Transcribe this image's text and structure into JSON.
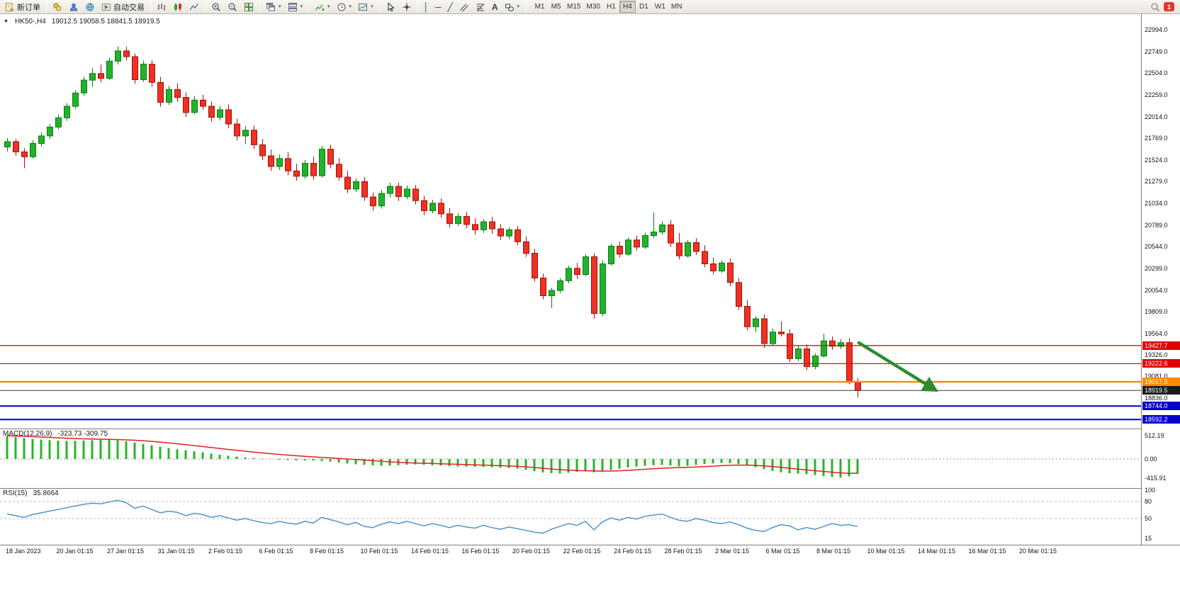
{
  "toolbar": {
    "new_order_label": "新订单",
    "auto_trading_label": "自动交易",
    "text_tool_label": "A",
    "timeframes": [
      "M1",
      "M5",
      "M15",
      "M30",
      "H1",
      "H4",
      "D1",
      "W1",
      "MN"
    ],
    "active_timeframe": "H4",
    "notification_badge": "1"
  },
  "icons": {
    "marker": "▼",
    "chevron_down": "▾",
    "vline_tool": "│",
    "hline_tool": "─",
    "trendline_tool": "╱"
  },
  "chart": {
    "symbol_period": "HK50-,H4",
    "ohlc_text": "19012.5 19058.5 18841.5 18919.5",
    "y_axis": [
      "22994.0",
      "22749.0",
      "22504.0",
      "22259.0",
      "22014.0",
      "21769.0",
      "21524.0",
      "21279.0",
      "21034.0",
      "20789.0",
      "20544.0",
      "20299.0",
      "20054.0",
      "19809.0",
      "19564.0",
      "19326.0",
      "19081.0",
      "18836.0"
    ],
    "x_axis": [
      "18 Jan 2023",
      "20 Jan 01:15",
      "27 Jan 01:15",
      "31 Jan 01:15",
      "2 Feb 01:15",
      "6 Feb 01:15",
      "8 Feb 01:15",
      "10 Feb 01:15",
      "14 Feb 01:15",
      "16 Feb 01:15",
      "20 Feb 01:15",
      "22 Feb 01:15",
      "24 Feb 01:15",
      "28 Feb 01:15",
      "2 Mar 01:15",
      "6 Mar 01:15",
      "8 Mar 01:15",
      "10 Mar 01:15",
      "14 Mar 01:15",
      "16 Mar 01:15",
      "20 Mar 01:15"
    ]
  },
  "panels": {
    "macd": {
      "title": "MACD(12,26,9)",
      "values_text": "-323.73 -309.75"
    },
    "rsi": {
      "title": "RSI(15)",
      "value_text": "35.8664"
    }
  },
  "annotation": {
    "type": "arrow",
    "direction": "down-right",
    "color": "#2e8b2e"
  },
  "chart_data": {
    "type": "candlestick",
    "symbol": "HK50-",
    "timeframe": "H4",
    "current": {
      "open": 19012.5,
      "high": 19058.5,
      "low": 18841.5,
      "close": 18919.5
    },
    "up_color": "#21b32b",
    "up_edge": "#0c7a12",
    "down_color": "#ef3124",
    "down_edge": "#a01208",
    "ylim": [
      18490,
      23170
    ],
    "candles": [
      [
        21670,
        21770,
        21620,
        21730
      ],
      [
        21730,
        21760,
        21570,
        21615
      ],
      [
        21615,
        21655,
        21430,
        21560
      ],
      [
        21560,
        21745,
        21540,
        21710
      ],
      [
        21710,
        21835,
        21675,
        21795
      ],
      [
        21795,
        21930,
        21760,
        21895
      ],
      [
        21895,
        22035,
        21870,
        22000
      ],
      [
        22000,
        22165,
        21965,
        22130
      ],
      [
        22130,
        22310,
        22100,
        22280
      ],
      [
        22280,
        22465,
        22250,
        22425
      ],
      [
        22425,
        22560,
        22350,
        22500
      ],
      [
        22500,
        22600,
        22400,
        22445
      ],
      [
        22445,
        22680,
        22425,
        22640
      ],
      [
        22640,
        22807,
        22600,
        22755
      ],
      [
        22755,
        22800,
        22645,
        22690
      ],
      [
        22690,
        22725,
        22385,
        22430
      ],
      [
        22430,
        22645,
        22405,
        22605
      ],
      [
        22605,
        22650,
        22350,
        22400
      ],
      [
        22400,
        22460,
        22125,
        22175
      ],
      [
        22175,
        22360,
        22145,
        22320
      ],
      [
        22320,
        22390,
        22180,
        22230
      ],
      [
        22230,
        22285,
        22010,
        22060
      ],
      [
        22060,
        22245,
        22040,
        22200
      ],
      [
        22200,
        22260,
        22090,
        22130
      ],
      [
        22130,
        22185,
        21955,
        22005
      ],
      [
        22005,
        22135,
        21970,
        22090
      ],
      [
        22090,
        22150,
        21880,
        21930
      ],
      [
        21930,
        21990,
        21745,
        21795
      ],
      [
        21795,
        21905,
        21700,
        21860
      ],
      [
        21860,
        21910,
        21645,
        21695
      ],
      [
        21695,
        21760,
        21520,
        21570
      ],
      [
        21570,
        21640,
        21400,
        21450
      ],
      [
        21450,
        21585,
        21410,
        21540
      ],
      [
        21540,
        21610,
        21350,
        21400
      ],
      [
        21400,
        21480,
        21290,
        21340
      ],
      [
        21340,
        21525,
        21310,
        21485
      ],
      [
        21485,
        21560,
        21300,
        21345
      ],
      [
        21345,
        21685,
        21325,
        21645
      ],
      [
        21645,
        21695,
        21430,
        21475
      ],
      [
        21475,
        21545,
        21290,
        21330
      ],
      [
        21330,
        21400,
        21150,
        21195
      ],
      [
        21195,
        21315,
        21160,
        21280
      ],
      [
        21280,
        21330,
        21060,
        21105
      ],
      [
        21105,
        21155,
        20950,
        21005
      ],
      [
        21005,
        21185,
        20975,
        21145
      ],
      [
        21145,
        21265,
        21100,
        21225
      ],
      [
        21225,
        21270,
        21060,
        21110
      ],
      [
        21110,
        21235,
        21080,
        21195
      ],
      [
        21195,
        21240,
        21020,
        21065
      ],
      [
        21065,
        21120,
        20900,
        20950
      ],
      [
        20950,
        21075,
        20920,
        21035
      ],
      [
        21035,
        21090,
        20870,
        20915
      ],
      [
        20915,
        20980,
        20760,
        20805
      ],
      [
        20805,
        20925,
        20775,
        20885
      ],
      [
        20885,
        20940,
        20750,
        20795
      ],
      [
        20795,
        20865,
        20680,
        20735
      ],
      [
        20735,
        20855,
        20700,
        20825
      ],
      [
        20825,
        20880,
        20690,
        20745
      ],
      [
        20745,
        20800,
        20620,
        20665
      ],
      [
        20665,
        20765,
        20630,
        20735
      ],
      [
        20735,
        20780,
        20560,
        20600
      ],
      [
        20600,
        20660,
        20430,
        20470
      ],
      [
        20470,
        20520,
        20150,
        20190
      ],
      [
        20190,
        20240,
        19950,
        19990
      ],
      [
        19990,
        20080,
        19850,
        20050
      ],
      [
        20050,
        20190,
        20020,
        20160
      ],
      [
        20160,
        20330,
        20130,
        20300
      ],
      [
        20300,
        20360,
        20180,
        20230
      ],
      [
        20230,
        20460,
        20210,
        20430
      ],
      [
        20430,
        20470,
        19730,
        19790
      ],
      [
        19790,
        20390,
        19760,
        20350
      ],
      [
        20350,
        20580,
        20330,
        20550
      ],
      [
        20550,
        20600,
        20420,
        20460
      ],
      [
        20460,
        20650,
        20440,
        20620
      ],
      [
        20620,
        20670,
        20500,
        20540
      ],
      [
        20540,
        20700,
        20520,
        20670
      ],
      [
        20670,
        20930,
        20640,
        20710
      ],
      [
        20710,
        20830,
        20680,
        20790
      ],
      [
        20790,
        20845,
        20540,
        20585
      ],
      [
        20585,
        20700,
        20400,
        20440
      ],
      [
        20440,
        20620,
        20420,
        20590
      ],
      [
        20590,
        20640,
        20450,
        20490
      ],
      [
        20490,
        20560,
        20310,
        20350
      ],
      [
        20350,
        20420,
        20230,
        20270
      ],
      [
        20270,
        20390,
        20250,
        20360
      ],
      [
        20360,
        20410,
        20100,
        20140
      ],
      [
        20140,
        20190,
        19830,
        19870
      ],
      [
        19870,
        19940,
        19600,
        19640
      ],
      [
        19640,
        19760,
        19580,
        19730
      ],
      [
        19730,
        19780,
        19400,
        19450
      ],
      [
        19450,
        19620,
        19420,
        19580
      ],
      [
        19580,
        19700,
        19530,
        19560
      ],
      [
        19560,
        19610,
        19240,
        19280
      ],
      [
        19280,
        19420,
        19250,
        19390
      ],
      [
        19390,
        19440,
        19150,
        19190
      ],
      [
        19190,
        19340,
        19160,
        19310
      ],
      [
        19310,
        19560,
        19290,
        19480
      ],
      [
        19480,
        19530,
        19380,
        19420
      ],
      [
        19420,
        19500,
        19390,
        19460
      ],
      [
        19460,
        19510,
        18990,
        19012.5
      ],
      [
        19012.5,
        19058.5,
        18841.5,
        18919.5
      ]
    ],
    "horizontal_lines": [
      {
        "value": 19427.7,
        "text": "19427.7",
        "line_color": "#dd1111",
        "line_width": 1.3,
        "badge_bg": "#e00000"
      },
      {
        "value": 19222.6,
        "text": "19222.6",
        "line_color": "#dd1111",
        "line_width": 1.3,
        "badge_bg": "#e00000"
      },
      {
        "value": 19017.5,
        "text": "19017.5",
        "line_color": "#ff8a00",
        "line_width": 2.4,
        "badge_bg": "#ff8a00"
      },
      {
        "value": 18919.5,
        "text": "18919.5",
        "line_color": "#3a3a3a",
        "line_width": 1,
        "badge_bg": "#1a1a1a"
      },
      {
        "value": 18744.0,
        "text": "18744.0",
        "line_color": "#0000cc",
        "line_width": 2,
        "badge_bg": "#0000cc"
      },
      {
        "value": 18592.2,
        "text": "18592.2",
        "line_color": "#0000cc",
        "line_width": 2,
        "badge_bg": "#0000cc"
      }
    ],
    "macd": {
      "params": "12,26,9",
      "histogram_color": "#27b52a",
      "signal_color": "#e02020",
      "scale_labels": [
        "512.19",
        "0.00",
        "-415.91"
      ],
      "scale_values": [
        512.19,
        0,
        -415.91
      ],
      "histogram": [
        500,
        482,
        460,
        440,
        425,
        412,
        402,
        395,
        398,
        405,
        412,
        418,
        420,
        408,
        388,
        360,
        330,
        300,
        270,
        240,
        212,
        190,
        170,
        148,
        120,
        95,
        72,
        52,
        35,
        20,
        8,
        -5,
        -15,
        -22,
        -28,
        -32,
        -36,
        -44,
        -58,
        -78,
        -98,
        -114,
        -128,
        -142,
        -150,
        -146,
        -136,
        -126,
        -120,
        -126,
        -136,
        -146,
        -156,
        -162,
        -166,
        -170,
        -175,
        -180,
        -186,
        -196,
        -212,
        -238,
        -268,
        -298,
        -312,
        -316,
        -300,
        -280,
        -262,
        -292,
        -272,
        -242,
        -212,
        -186,
        -166,
        -150,
        -136,
        -130,
        -142,
        -160,
        -150,
        -130,
        -110,
        -96,
        -86,
        -92,
        -112,
        -142,
        -182,
        -222,
        -262,
        -292,
        -312,
        -322,
        -332,
        -352,
        -372,
        -392,
        -404,
        -382,
        -323.73
      ],
      "signal": [
        510,
        504,
        497,
        489,
        481,
        472,
        463,
        455,
        448,
        442,
        437,
        433,
        429,
        425,
        419,
        411,
        400,
        386,
        370,
        352,
        333,
        313,
        293,
        273,
        252,
        231,
        210,
        190,
        171,
        152,
        134,
        117,
        101,
        86,
        72,
        59,
        47,
        36,
        25,
        13,
        1,
        -11,
        -24,
        -37,
        -50,
        -62,
        -72,
        -81,
        -88,
        -93,
        -98,
        -104,
        -110,
        -116,
        -122,
        -128,
        -134,
        -140,
        -146,
        -153,
        -161,
        -172,
        -186,
        -202,
        -218,
        -233,
        -245,
        -253,
        -257,
        -262,
        -265,
        -263,
        -257,
        -248,
        -237,
        -225,
        -213,
        -202,
        -193,
        -187,
        -182,
        -175,
        -166,
        -156,
        -146,
        -138,
        -133,
        -133,
        -139,
        -150,
        -165,
        -183,
        -202,
        -220,
        -238,
        -255,
        -272,
        -289,
        -304,
        -315,
        -309.75
      ]
    },
    "rsi": {
      "period": 15,
      "color": "#4f94cd",
      "level_labels": [
        "100",
        "80",
        "50",
        "15"
      ],
      "level_values": [
        100,
        80,
        50,
        15
      ],
      "dashed_levels": [
        80,
        50
      ],
      "values": [
        58,
        55,
        52,
        57,
        60,
        63,
        66,
        69,
        72,
        75,
        77,
        76,
        79,
        82,
        78,
        68,
        72,
        66,
        60,
        63,
        61,
        55,
        59,
        57,
        52,
        55,
        51,
        47,
        50,
        46,
        43,
        41,
        45,
        42,
        40,
        45,
        42,
        52,
        48,
        44,
        39,
        43,
        36,
        34,
        40,
        44,
        41,
        45,
        41,
        37,
        41,
        38,
        34,
        38,
        35,
        33,
        38,
        34,
        31,
        35,
        32,
        29,
        26,
        24,
        31,
        36,
        41,
        38,
        45,
        30,
        44,
        51,
        47,
        52,
        49,
        54,
        56,
        58,
        52,
        47,
        45,
        50,
        47,
        43,
        41,
        44,
        39,
        33,
        29,
        27,
        34,
        39,
        37,
        30,
        34,
        31,
        36,
        41,
        38,
        39,
        35.87
      ]
    }
  }
}
